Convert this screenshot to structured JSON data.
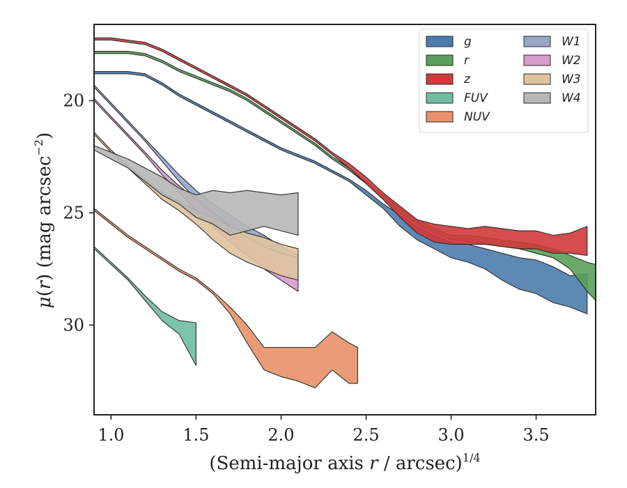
{
  "chart_data": {
    "type": "area",
    "xlabel": "(Semi-major axis r / arcsec)^{1/4}",
    "ylabel": "μ(r) (mag arcsec^{-2})",
    "xlim": [
      0.9,
      3.85
    ],
    "ylim": [
      34.0,
      16.6
    ],
    "y_inverted": true,
    "xticks": [
      1.0,
      1.5,
      2.0,
      2.5,
      3.0,
      3.5
    ],
    "xtick_labels": [
      "1.0",
      "1.5",
      "2.0",
      "2.5",
      "3.0",
      "3.5"
    ],
    "yticks": [
      20,
      25,
      30
    ],
    "ytick_labels": [
      "20",
      "25",
      "30"
    ],
    "legend": {
      "placement": "top-right",
      "columns": 2
    },
    "series": [
      {
        "name": "g",
        "color": "#4c7cad",
        "x": [
          0.9,
          1.0,
          1.1,
          1.2,
          1.3,
          1.4,
          1.5,
          1.6,
          1.7,
          1.8,
          1.9,
          2.0,
          2.1,
          2.2,
          2.3,
          2.4,
          2.5,
          2.6,
          2.7,
          2.8,
          2.9,
          3.0,
          3.1,
          3.2,
          3.3,
          3.4,
          3.5,
          3.6,
          3.7,
          3.8
        ],
        "y_bright": [
          18.7,
          18.7,
          18.7,
          18.8,
          19.2,
          19.7,
          20.1,
          20.5,
          20.9,
          21.3,
          21.7,
          22.1,
          22.4,
          22.7,
          23.1,
          23.5,
          24.0,
          24.6,
          25.1,
          25.6,
          26.0,
          26.3,
          26.4,
          26.6,
          26.8,
          27.0,
          27.1,
          27.4,
          27.8,
          27.7
        ],
        "y_faint": [
          18.8,
          18.8,
          18.8,
          18.9,
          19.3,
          19.8,
          20.2,
          20.6,
          21.0,
          21.4,
          21.8,
          22.2,
          22.5,
          22.8,
          23.2,
          23.6,
          24.2,
          24.8,
          25.6,
          26.2,
          26.6,
          27.0,
          27.2,
          27.5,
          28.0,
          28.4,
          28.6,
          29.0,
          29.2,
          29.5
        ]
      },
      {
        "name": "r",
        "color": "#5aa05a",
        "x": [
          0.9,
          1.0,
          1.1,
          1.2,
          1.3,
          1.4,
          1.5,
          1.6,
          1.7,
          1.8,
          1.9,
          2.0,
          2.1,
          2.2,
          2.3,
          2.4,
          2.5,
          2.6,
          2.7,
          2.8,
          2.9,
          3.0,
          3.1,
          3.2,
          3.3,
          3.4,
          3.5,
          3.6,
          3.7,
          3.8,
          3.85
        ],
        "y_bright": [
          17.8,
          17.8,
          17.8,
          17.9,
          18.2,
          18.6,
          18.9,
          19.2,
          19.5,
          19.9,
          20.4,
          20.9,
          21.4,
          21.9,
          22.5,
          23.0,
          23.6,
          24.2,
          24.8,
          25.3,
          25.7,
          26.0,
          26.0,
          26.1,
          26.2,
          26.3,
          26.4,
          26.6,
          26.9,
          27.2,
          27.3
        ],
        "y_faint": [
          17.9,
          17.9,
          17.9,
          18.0,
          18.3,
          18.7,
          19.0,
          19.3,
          19.6,
          20.0,
          20.5,
          21.0,
          21.5,
          22.0,
          22.6,
          23.1,
          23.7,
          24.4,
          25.0,
          25.5,
          25.9,
          26.2,
          26.3,
          26.4,
          26.5,
          26.6,
          26.8,
          27.0,
          27.5,
          28.5,
          28.9
        ]
      },
      {
        "name": "z",
        "color": "#d03a3a",
        "x": [
          0.9,
          1.0,
          1.1,
          1.2,
          1.3,
          1.4,
          1.5,
          1.6,
          1.7,
          1.8,
          1.9,
          2.0,
          2.1,
          2.2,
          2.3,
          2.4,
          2.5,
          2.6,
          2.7,
          2.8,
          2.9,
          3.0,
          3.1,
          3.2,
          3.3,
          3.4,
          3.5,
          3.6,
          3.7,
          3.8
        ],
        "y_bright": [
          17.2,
          17.2,
          17.3,
          17.4,
          17.7,
          18.1,
          18.5,
          18.9,
          19.3,
          19.7,
          20.2,
          20.7,
          21.2,
          21.7,
          22.3,
          22.8,
          23.4,
          24.1,
          24.7,
          25.3,
          25.5,
          25.6,
          25.7,
          25.6,
          25.7,
          25.8,
          25.8,
          26.0,
          25.9,
          25.6
        ],
        "y_faint": [
          17.3,
          17.3,
          17.4,
          17.5,
          17.8,
          18.2,
          18.6,
          19.0,
          19.4,
          19.8,
          20.3,
          20.8,
          21.3,
          21.8,
          22.4,
          23.0,
          23.7,
          24.4,
          25.2,
          25.9,
          26.3,
          26.4,
          26.4,
          26.4,
          26.5,
          26.6,
          26.6,
          26.8,
          26.8,
          26.9
        ]
      },
      {
        "name": "FUV",
        "color": "#6fbca0",
        "x": [
          0.9,
          1.0,
          1.1,
          1.2,
          1.3,
          1.4,
          1.5
        ],
        "y_bright": [
          26.5,
          27.2,
          27.9,
          28.7,
          29.4,
          29.8,
          29.9
        ],
        "y_faint": [
          26.6,
          27.3,
          28.0,
          28.9,
          29.8,
          30.4,
          31.8
        ]
      },
      {
        "name": "NUV",
        "color": "#e8916a",
        "x": [
          0.9,
          1.0,
          1.1,
          1.2,
          1.3,
          1.4,
          1.5,
          1.6,
          1.7,
          1.8,
          1.9,
          2.0,
          2.1,
          2.2,
          2.3,
          2.4,
          2.45
        ],
        "y_bright": [
          24.8,
          25.4,
          26.0,
          26.5,
          27.0,
          27.5,
          27.9,
          28.5,
          29.2,
          30.0,
          31.0,
          31.0,
          31.0,
          31.0,
          30.3,
          30.8,
          31.0
        ],
        "y_faint": [
          24.9,
          25.5,
          26.1,
          26.6,
          27.1,
          27.6,
          28.0,
          28.6,
          29.5,
          30.8,
          32.0,
          32.3,
          32.5,
          32.8,
          32.0,
          32.6,
          32.6
        ]
      },
      {
        "name": "W1",
        "color": "#98a6c8",
        "x": [
          0.9,
          1.0,
          1.1,
          1.2,
          1.3,
          1.4,
          1.5,
          1.6,
          1.7,
          1.8,
          1.9,
          2.0,
          2.1
        ],
        "y_bright": [
          19.3,
          20.1,
          20.9,
          21.7,
          22.5,
          23.3,
          24.0,
          24.6,
          25.1,
          25.6,
          26.0,
          26.5,
          26.9
        ],
        "y_faint": [
          19.4,
          20.2,
          21.0,
          21.8,
          22.7,
          23.6,
          24.4,
          25.2,
          25.9,
          26.5,
          27.0,
          27.5,
          28.0
        ]
      },
      {
        "name": "W2",
        "color": "#d69ccb",
        "x": [
          0.9,
          1.0,
          1.1,
          1.2,
          1.3,
          1.4,
          1.5,
          1.6,
          1.7,
          1.8,
          1.9,
          2.0,
          2.1
        ],
        "y_bright": [
          19.9,
          20.7,
          21.5,
          22.3,
          23.1,
          23.8,
          24.4,
          25.0,
          25.6,
          26.1,
          26.5,
          26.8,
          27.0
        ],
        "y_faint": [
          20.0,
          20.8,
          21.6,
          22.4,
          23.3,
          24.1,
          24.9,
          25.6,
          26.3,
          26.9,
          27.5,
          28.0,
          28.5
        ]
      },
      {
        "name": "W3",
        "color": "#dfc39f",
        "x": [
          0.9,
          1.0,
          1.1,
          1.2,
          1.3,
          1.4,
          1.5,
          1.6,
          1.7,
          1.8,
          1.9,
          2.0,
          2.1
        ],
        "y_bright": [
          21.4,
          22.2,
          22.9,
          23.5,
          24.1,
          24.5,
          24.9,
          25.2,
          25.6,
          25.9,
          26.1,
          26.4,
          26.6
        ],
        "y_faint": [
          21.5,
          22.3,
          23.0,
          23.7,
          24.4,
          24.9,
          25.5,
          26.2,
          26.8,
          27.2,
          27.5,
          27.8,
          28.0
        ]
      },
      {
        "name": "W4",
        "color": "#b7b7b7",
        "x": [
          0.9,
          1.0,
          1.1,
          1.2,
          1.3,
          1.4,
          1.5,
          1.6,
          1.7,
          1.8,
          1.9,
          2.0,
          2.1
        ],
        "y_bright": [
          22.0,
          22.3,
          22.6,
          23.0,
          23.4,
          23.9,
          24.2,
          24.0,
          24.1,
          24.0,
          24.1,
          24.2,
          24.1
        ],
        "y_faint": [
          22.2,
          22.6,
          23.0,
          23.6,
          24.2,
          24.6,
          25.2,
          25.5,
          26.0,
          25.8,
          25.6,
          25.8,
          26.0
        ]
      }
    ]
  }
}
